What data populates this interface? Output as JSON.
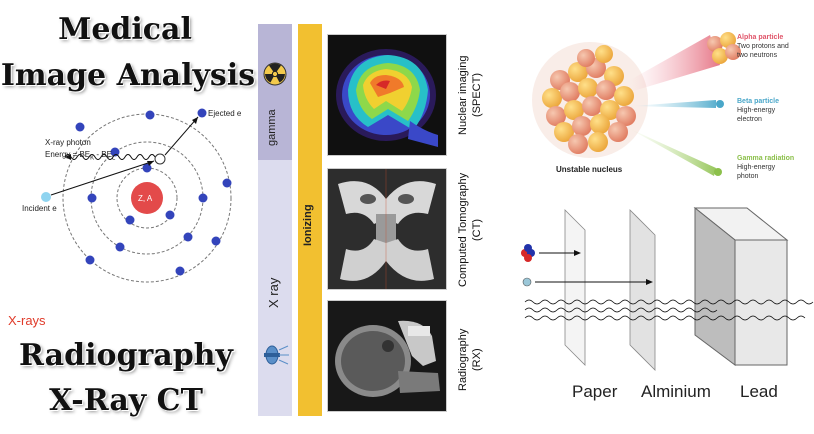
{
  "left": {
    "title_top": [
      "Medical",
      "Image Analysis"
    ],
    "title_bottom": [
      "Radiography",
      "X-Ray CT"
    ],
    "xrays_label": "X-rays",
    "atom": {
      "photon_label": "X-ray photon",
      "energy_label": "Energy = BE",
      "energy_sub": "K",
      "energy_tail": " - BE",
      "energy_sub2": "L",
      "ejected_label": "Ejected e",
      "incident_label": "Incident e",
      "nucleus_label": "Z, A"
    }
  },
  "middle": {
    "bands": [
      "gamma",
      "X ray"
    ],
    "ionizing": "Ionizing",
    "modalities": [
      {
        "name": "Nuclear imaging",
        "abbr": "(SPECT)"
      },
      {
        "name": "Computed Tomography",
        "abbr": "(CT)"
      },
      {
        "name": "Radiography",
        "abbr": "(RX)"
      }
    ]
  },
  "right": {
    "nucleus_label": "Unstable nucleus",
    "particles": [
      {
        "name": "Alpha particle",
        "desc1": "Two protons and",
        "desc2": "two neutrons",
        "color": "#e0556a"
      },
      {
        "name": "Beta particle",
        "desc1": "High-energy",
        "desc2": "electron",
        "color": "#4aa7c9"
      },
      {
        "name": "Gamma radiation",
        "desc1": "High-energy",
        "desc2": "photon",
        "color": "#8cc04b"
      }
    ],
    "shields": [
      "Paper",
      "Alminium",
      "Lead"
    ]
  }
}
